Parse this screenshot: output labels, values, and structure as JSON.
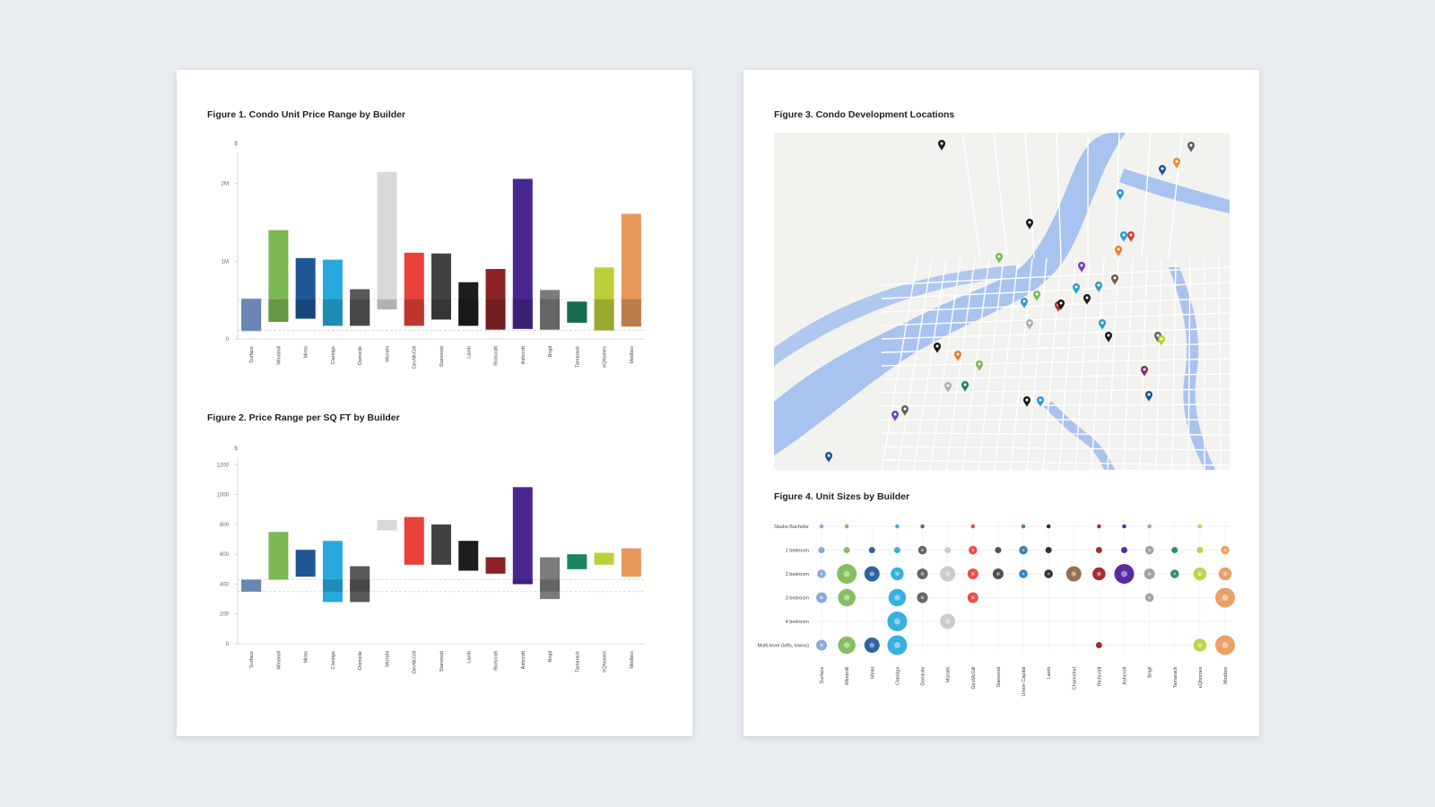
{
  "colors": {
    "background": "#e9ecf0",
    "page": "#ffffff",
    "water": "#a9c3f0",
    "land": "#f2f2ef",
    "roads": "#ffffff"
  },
  "builders": [
    "Surface",
    "Windmill",
    "Minto",
    "Claridge",
    "Domicile",
    "Mizrahi",
    "DevMcGill",
    "Starwood",
    "Lamb",
    "Richcraft",
    "Ashcroft",
    "Brigil",
    "Tamarack",
    "eQhomes",
    "Modbox"
  ],
  "builder_colors": [
    "#7fa3d8",
    "#7cb955",
    "#1f5796",
    "#27a9dd",
    "#585858",
    "#d9d9d9",
    "#e8413a",
    "#424242",
    "#1d1d1d",
    "#8b2327",
    "#4a2790",
    "#7b7b7b",
    "#1b8460",
    "#bccf38",
    "#e6995a"
  ],
  "figures": {
    "fig1": {
      "title": "Figure 1. Condo Unit Price Range by Builder"
    },
    "fig2": {
      "title": "Figure 2. Price Range per SQ FT by Builder"
    },
    "fig3": {
      "title": "Figure 3. Condo Development Locations"
    },
    "fig4": {
      "title": "Figure 4. Unit Sizes by Builder"
    }
  },
  "chart_data": [
    {
      "id": "fig1",
      "type": "bar",
      "title": "Figure 1. Condo Unit Price Range by Builder",
      "ylabel": "$",
      "yticks": [
        {
          "v": 0,
          "label": "0"
        },
        {
          "v": 1000000,
          "label": "1M"
        },
        {
          "v": 2000000,
          "label": "2M"
        }
      ],
      "ylim": [
        0,
        2400000
      ],
      "categories": [
        "Surface",
        "Windmill",
        "Minto",
        "Claridge",
        "Domicile",
        "Mizrahi",
        "DevMcGill",
        "Starwood",
        "Lamb",
        "Richcraft",
        "Ashcroft",
        "Brigil",
        "Tamarack",
        "eQhomes",
        "Modbox"
      ],
      "ranges": [
        [
          100000,
          520000
        ],
        [
          220000,
          1400000
        ],
        [
          260000,
          1040000
        ],
        [
          170000,
          1020000
        ],
        [
          170000,
          640000
        ],
        [
          380000,
          2150000
        ],
        [
          170000,
          1110000
        ],
        [
          250000,
          1100000
        ],
        [
          170000,
          730000
        ],
        [
          120000,
          900000
        ],
        [
          130000,
          2060000
        ],
        [
          120000,
          630000
        ],
        [
          210000,
          480000
        ],
        [
          110000,
          920000
        ],
        [
          160000,
          1610000
        ]
      ],
      "reference_lines": [
        110000,
        510000
      ]
    },
    {
      "id": "fig2",
      "type": "bar",
      "title": "Figure 2. Price Range per SQ FT by Builder",
      "ylabel": "$",
      "yticks": [
        {
          "v": 0,
          "label": "0"
        },
        {
          "v": 200,
          "label": "200"
        },
        {
          "v": 400,
          "label": "400"
        },
        {
          "v": 600,
          "label": "600"
        },
        {
          "v": 800,
          "label": "800"
        },
        {
          "v": 1000,
          "label": "1000"
        },
        {
          "v": 1200,
          "label": "1200"
        }
      ],
      "ylim": [
        0,
        1250
      ],
      "categories": [
        "Surface",
        "Windmill",
        "Minto",
        "Claridge",
        "Domicile",
        "Mizrahi",
        "DevMcGill",
        "Starwood",
        "Lamb",
        "Richcraft",
        "Ashcroft",
        "Brigil",
        "Tamarack",
        "eQhomes",
        "Modbox"
      ],
      "ranges": [
        [
          350,
          430
        ],
        [
          430,
          750
        ],
        [
          450,
          630
        ],
        [
          280,
          690
        ],
        [
          280,
          520
        ],
        [
          760,
          830
        ],
        [
          530,
          850
        ],
        [
          530,
          800
        ],
        [
          490,
          690
        ],
        [
          470,
          580
        ],
        [
          400,
          1050
        ],
        [
          300,
          580
        ],
        [
          500,
          600
        ],
        [
          530,
          610
        ],
        [
          450,
          640
        ]
      ],
      "reference_lines": [
        350,
        430
      ]
    },
    {
      "id": "fig4",
      "type": "scatter",
      "title": "Figure 4. Unit Sizes by Builder",
      "rows": [
        "Studio Bachelor",
        "1 bedroom",
        "2 bedroom",
        "3 bedroom",
        "4 bedroom",
        "Multi-level (lofts, towns)"
      ],
      "categories": [
        "Surface",
        "Windmill",
        "Minto",
        "Claridge",
        "Domicile",
        "Mizrahi",
        "DevMcGill",
        "Starwood",
        "Union Capital",
        "Lamb",
        "Charesfort",
        "Richcraft",
        "Ashcroft",
        "Brigil",
        "Tamarack",
        "eQhomes",
        "Modbox"
      ],
      "colors": [
        "#7fa3d8",
        "#7cb955",
        "#1f5796",
        "#27a9dd",
        "#585858",
        "#c8c8c8",
        "#e8413a",
        "#424242",
        "#2476b8",
        "#1d1d1d",
        "#8a6543",
        "#9b1c22",
        "#4a1a9a",
        "#9a9a9a",
        "#1b8460",
        "#bccf38",
        "#e6995a"
      ],
      "points": [
        [
          0,
          0,
          1
        ],
        [
          1,
          0,
          1
        ],
        [
          3,
          0,
          1
        ],
        [
          4,
          0,
          1
        ],
        [
          6,
          0,
          1
        ],
        [
          8,
          0,
          1
        ],
        [
          9,
          0,
          1
        ],
        [
          11,
          0,
          1
        ],
        [
          12,
          0,
          1
        ],
        [
          13,
          0,
          1
        ],
        [
          15,
          0,
          1
        ],
        [
          0,
          1,
          2
        ],
        [
          1,
          1,
          2
        ],
        [
          2,
          1,
          2
        ],
        [
          3,
          1,
          2
        ],
        [
          4,
          1,
          3
        ],
        [
          5,
          1,
          2
        ],
        [
          6,
          1,
          3
        ],
        [
          7,
          1,
          2
        ],
        [
          8,
          1,
          3
        ],
        [
          9,
          1,
          2
        ],
        [
          11,
          1,
          2
        ],
        [
          12,
          1,
          2
        ],
        [
          13,
          1,
          3
        ],
        [
          14,
          1,
          2
        ],
        [
          15,
          1,
          2
        ],
        [
          16,
          1,
          3
        ],
        [
          0,
          2,
          3
        ],
        [
          1,
          2,
          8
        ],
        [
          2,
          2,
          6
        ],
        [
          3,
          2,
          5
        ],
        [
          4,
          2,
          4
        ],
        [
          5,
          2,
          6
        ],
        [
          6,
          2,
          4
        ],
        [
          7,
          2,
          4
        ],
        [
          8,
          2,
          3
        ],
        [
          9,
          2,
          3
        ],
        [
          10,
          2,
          6
        ],
        [
          11,
          2,
          5
        ],
        [
          12,
          2,
          8
        ],
        [
          13,
          2,
          4
        ],
        [
          14,
          2,
          3
        ],
        [
          15,
          2,
          5
        ],
        [
          16,
          2,
          5
        ],
        [
          0,
          3,
          4
        ],
        [
          1,
          3,
          7
        ],
        [
          3,
          3,
          7
        ],
        [
          4,
          3,
          4
        ],
        [
          6,
          3,
          4
        ],
        [
          13,
          3,
          3
        ],
        [
          16,
          3,
          8
        ],
        [
          3,
          4,
          8
        ],
        [
          5,
          4,
          6
        ],
        [
          0,
          5,
          4
        ],
        [
          1,
          5,
          7
        ],
        [
          2,
          5,
          6
        ],
        [
          3,
          5,
          8
        ],
        [
          11,
          5,
          2
        ],
        [
          15,
          5,
          5
        ],
        [
          16,
          5,
          8
        ]
      ]
    }
  ],
  "map_pins": [
    {
      "color": "#1a1a1a"
    },
    {
      "color": "#606060"
    },
    {
      "color": "#f08a2a"
    },
    {
      "color": "#1f5796"
    },
    {
      "color": "#2a9ad8"
    },
    {
      "color": "#1a1a1a"
    },
    {
      "color": "#2a9ad8"
    },
    {
      "color": "#e03a2a"
    },
    {
      "color": "#f07a2a"
    },
    {
      "color": "#7cb955"
    },
    {
      "color": "#7a3fb0"
    },
    {
      "color": "#7a5a48"
    },
    {
      "color": "#7cb955"
    },
    {
      "color": "#2a9ad8"
    },
    {
      "color": "#2a9ad8"
    },
    {
      "color": "#1a1a1a"
    },
    {
      "color": "#c02a2a"
    },
    {
      "color": "#1a1a1a"
    },
    {
      "color": "#2a9ad8"
    },
    {
      "color": "#b0b0b0"
    },
    {
      "color": "#2a9ad8"
    },
    {
      "color": "#1a1a1a"
    },
    {
      "color": "#1a1a1a"
    },
    {
      "color": "#f07a2a"
    },
    {
      "color": "#7cb955"
    },
    {
      "color": "#606060"
    },
    {
      "color": "#bccf38"
    },
    {
      "color": "#b0b0b0"
    },
    {
      "color": "#1b8460"
    },
    {
      "color": "#8b2a6a"
    },
    {
      "color": "#1a1a1a"
    },
    {
      "color": "#2a9ad8"
    },
    {
      "color": "#1f5796"
    },
    {
      "color": "#606060"
    },
    {
      "color": "#7a3fb0"
    },
    {
      "color": "#1f5796"
    }
  ]
}
